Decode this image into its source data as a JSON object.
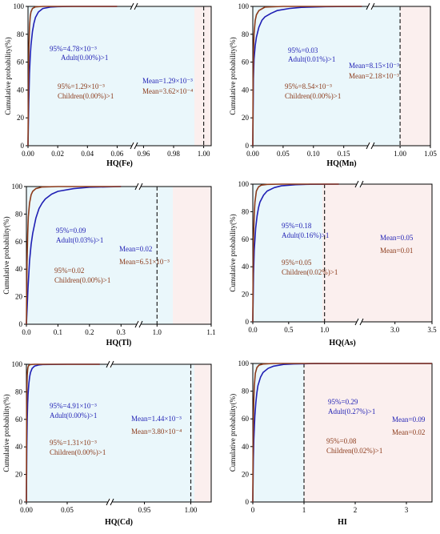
{
  "colors": {
    "adult": "#1f1fb4",
    "children": "#8b3a1a",
    "left_region": "#eaf7fb",
    "right_region": "#fbefee"
  },
  "chart_data": [
    {
      "type": "line",
      "xlabel": "HQ(Fe)",
      "ylabel": "Cumulative probability(%)",
      "ylim": [
        0,
        100
      ],
      "yticks": [
        "0",
        "20",
        "40",
        "60",
        "80",
        "100"
      ],
      "xticks": [
        "0.00",
        "0.02",
        "0.04",
        "0.06",
        "0.96",
        "0.98",
        "1.00"
      ],
      "broken_axis": true,
      "threshold": 1.0,
      "grid": false,
      "series": [
        {
          "name": "Adult",
          "x": [
            0,
            0.0005,
            0.001,
            0.0015,
            0.002,
            0.003,
            0.004,
            0.005,
            0.007,
            0.01,
            0.015,
            0.02,
            0.03,
            0.04,
            0.06
          ],
          "values": [
            0,
            30,
            52,
            64,
            72,
            82,
            88,
            92,
            96,
            98.5,
            99.5,
            99.8,
            100,
            100,
            100
          ]
        },
        {
          "name": "Children",
          "x": [
            0,
            0.0003,
            0.0006,
            0.001,
            0.0015,
            0.002,
            0.003,
            0.005,
            0.01,
            0.02,
            0.06
          ],
          "values": [
            0,
            40,
            70,
            85,
            93,
            96,
            98.5,
            99.7,
            100,
            100,
            100
          ]
        }
      ],
      "annotations": {
        "adult_p95": "95%=4.78×10⁻³",
        "adult_exceed": "Adult(0.00%)>1",
        "adult_mean": "Mean=1.29×10⁻³",
        "children_p95": "95%=1.29×10⁻³",
        "children_exceed": "Children(0.00%)>1",
        "children_mean": "Mean=3.62×10⁻⁴"
      }
    },
    {
      "type": "line",
      "xlabel": "HQ(Mn)",
      "ylabel": "Cumulative probability(%)",
      "ylim": [
        0,
        100
      ],
      "yticks": [
        "0",
        "20",
        "40",
        "60",
        "80",
        "100"
      ],
      "xticks": [
        "0.00",
        "0.05",
        "0.10",
        "0.15",
        "1.00",
        "1.05"
      ],
      "broken_axis": true,
      "threshold": 1.0,
      "grid": false,
      "series": [
        {
          "name": "Adult",
          "x": [
            0,
            0.001,
            0.002,
            0.004,
            0.006,
            0.01,
            0.015,
            0.02,
            0.03,
            0.04,
            0.06,
            0.08,
            0.12,
            0.18
          ],
          "values": [
            0,
            48,
            62,
            72,
            78,
            85,
            90,
            92.5,
            95,
            97,
            98.5,
            99.3,
            99.8,
            100
          ]
        },
        {
          "name": "Children",
          "x": [
            0,
            0.0005,
            0.001,
            0.002,
            0.004,
            0.006,
            0.01,
            0.02,
            0.05,
            0.18
          ],
          "values": [
            0,
            45,
            65,
            80,
            90,
            94,
            97,
            99.5,
            100,
            100
          ]
        }
      ],
      "annotations": {
        "adult_p95": "95%=0.03",
        "adult_exceed": "Adult(0.01%)>1",
        "adult_mean": "Mean=8.15×10⁻³",
        "children_p95": "95%=8.54×10⁻³",
        "children_exceed": "Children(0.00%)>1",
        "children_mean": "Mean=2.18×10⁻³"
      }
    },
    {
      "type": "line",
      "xlabel": "HQ(Tl)",
      "ylabel": "Cumulative probability(%)",
      "ylim": [
        0,
        100
      ],
      "yticks": [
        "0",
        "20",
        "40",
        "60",
        "80",
        "100"
      ],
      "xticks": [
        "0.0",
        "0.1",
        "0.2",
        "0.3",
        "1.0",
        "1.1"
      ],
      "broken_axis": true,
      "threshold": 1.0,
      "grid": false,
      "series": [
        {
          "name": "Adult",
          "x": [
            0,
            0.002,
            0.005,
            0.01,
            0.015,
            0.02,
            0.03,
            0.04,
            0.05,
            0.06,
            0.08,
            0.1,
            0.15,
            0.2,
            0.3
          ],
          "values": [
            0,
            10,
            26,
            46,
            58,
            66,
            77,
            84,
            88,
            91,
            94.5,
            96.5,
            98.5,
            99.5,
            100
          ]
        },
        {
          "name": "Children",
          "x": [
            0,
            0.001,
            0.002,
            0.004,
            0.006,
            0.01,
            0.015,
            0.02,
            0.03,
            0.05,
            0.1,
            0.3
          ],
          "values": [
            0,
            25,
            45,
            65,
            78,
            88,
            94,
            96.5,
            98.5,
            99.7,
            100,
            100
          ]
        }
      ],
      "annotations": {
        "adult_p95": "95%=0.09",
        "adult_exceed": "Adult(0.03%)>1",
        "adult_mean": "Mean=0.02",
        "children_p95": "95%=0.02",
        "children_exceed": "Children(0.00%)>1",
        "children_mean": "Mean=6.51×10⁻³"
      }
    },
    {
      "type": "line",
      "xlabel": "HQ(As)",
      "ylabel": "Cumulative probability(%)",
      "ylim": [
        0,
        100
      ],
      "yticks": [
        "0",
        "20",
        "40",
        "60",
        "80",
        "100"
      ],
      "xticks": [
        "0.0",
        "0.5",
        "1.0",
        "3.0",
        "3.5"
      ],
      "broken_axis": true,
      "threshold": 1.0,
      "grid": false,
      "series": [
        {
          "name": "Adult",
          "x": [
            0,
            0.01,
            0.02,
            0.04,
            0.06,
            0.08,
            0.1,
            0.15,
            0.2,
            0.3,
            0.4,
            0.6,
            0.8,
            1.2
          ],
          "values": [
            0,
            35,
            52,
            68,
            77,
            83,
            87,
            92,
            95,
            97.5,
            98.8,
            99.6,
            99.9,
            100
          ]
        },
        {
          "name": "Children",
          "x": [
            0,
            0.005,
            0.01,
            0.02,
            0.03,
            0.05,
            0.08,
            0.12,
            0.2,
            0.4,
            1.2
          ],
          "values": [
            0,
            40,
            60,
            78,
            87,
            95,
            98,
            99.3,
            99.8,
            100,
            100
          ]
        }
      ],
      "annotations": {
        "adult_p95": "95%=0.18",
        "adult_exceed": "Adult(0.16%)>1",
        "adult_mean": "Mean=0.05",
        "children_p95": "95%=0.05",
        "children_exceed": "Children(0.02%)>1",
        "children_mean": "Mean=0.01"
      }
    },
    {
      "type": "line",
      "xlabel": "HQ(Cd)",
      "ylabel": "Cumulative probability(%)",
      "ylim": [
        0,
        100
      ],
      "yticks": [
        "0",
        "20",
        "40",
        "60",
        "80",
        "100"
      ],
      "xticks": [
        "0.00",
        "0.05",
        "0.95",
        "1.00"
      ],
      "broken_axis": true,
      "threshold": 1.0,
      "grid": false,
      "series": [
        {
          "name": "Adult",
          "x": [
            0,
            0.0005,
            0.001,
            0.0015,
            0.002,
            0.003,
            0.004,
            0.005,
            0.007,
            0.01,
            0.015,
            0.02,
            0.05,
            0.09
          ],
          "values": [
            0,
            40,
            60,
            71,
            78,
            86,
            91,
            94,
            97,
            98.7,
            99.5,
            99.8,
            100,
            100
          ]
        },
        {
          "name": "Children",
          "x": [
            0,
            0.0002,
            0.0004,
            0.0007,
            0.001,
            0.0015,
            0.002,
            0.003,
            0.005,
            0.01,
            0.09
          ],
          "values": [
            0,
            45,
            70,
            85,
            92,
            96,
            98,
            99.3,
            99.8,
            100,
            100
          ]
        }
      ],
      "annotations": {
        "adult_p95": "95%=4.91×10⁻³",
        "adult_exceed": "Adult(0.00%)>1",
        "adult_mean": "Mean=1.44×10⁻³",
        "children_p95": "95%=1.31×10⁻³",
        "children_exceed": "Children(0.00%)>1",
        "children_mean": "Mean=3.80×10⁻⁴"
      }
    },
    {
      "type": "line",
      "xlabel": "HI",
      "ylabel": "Cumulative probability(%)",
      "ylim": [
        0,
        100
      ],
      "xlim": [
        0,
        3.5
      ],
      "yticks": [
        "0",
        "20",
        "40",
        "60",
        "80",
        "100"
      ],
      "xticks": [
        "0",
        "1",
        "2",
        "3"
      ],
      "broken_axis": false,
      "threshold": 1.0,
      "grid": false,
      "series": [
        {
          "name": "Adult",
          "x": [
            0,
            0.01,
            0.02,
            0.04,
            0.06,
            0.08,
            0.1,
            0.15,
            0.2,
            0.3,
            0.4,
            0.6,
            0.8,
            1.2,
            2.0,
            3.5
          ],
          "values": [
            0,
            30,
            45,
            62,
            72,
            79,
            84,
            90,
            93.5,
            96.5,
            98,
            99.3,
            99.7,
            99.95,
            100,
            100
          ]
        },
        {
          "name": "Children",
          "x": [
            0,
            0.005,
            0.01,
            0.02,
            0.03,
            0.05,
            0.08,
            0.12,
            0.2,
            0.4,
            1.0,
            3.5
          ],
          "values": [
            0,
            35,
            55,
            74,
            84,
            93,
            97,
            98.8,
            99.6,
            100,
            100,
            100
          ]
        }
      ],
      "annotations": {
        "adult_p95": "95%=0.29",
        "adult_exceed": "Adult(0.27%)>1",
        "adult_mean": "Mean=0.09",
        "children_p95": "95%=0.08",
        "children_exceed": "Children(0.02%)>1",
        "children_mean": "Mean=0.02"
      }
    }
  ]
}
